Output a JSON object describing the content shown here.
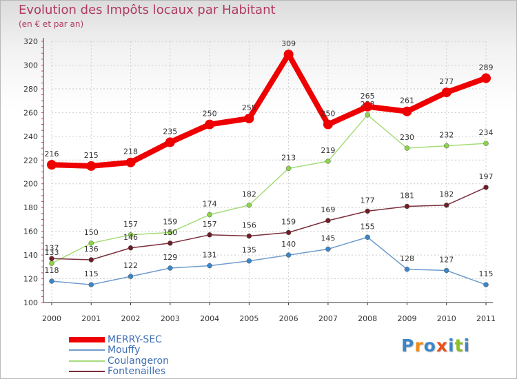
{
  "header": {
    "title": "Evolution des Impôts locaux par Habitant",
    "subtitle": "(en € et par an)"
  },
  "logo": {
    "letters": [
      "P",
      "r",
      "o",
      "x",
      "i",
      "t",
      "i"
    ]
  },
  "colors": {
    "title": "#b03a63",
    "legend_text": "#3f6fb5",
    "grid": "#cccccc",
    "logo": [
      "#3a86c8",
      "#f08c1c",
      "#3a86c8",
      "#e8501a",
      "#3a86c8",
      "#8cbf26",
      "#3a86c8"
    ]
  },
  "chart_data": {
    "type": "line",
    "title": "Evolution des Impôts locaux par Habitant",
    "subtitle": "(en € et par an)",
    "xlabel": "",
    "ylabel": "",
    "x": [
      "2000",
      "2001",
      "2002",
      "2003",
      "2004",
      "2005",
      "2006",
      "2007",
      "2008",
      "2009",
      "2010",
      "2011"
    ],
    "ylim": [
      100,
      320
    ],
    "yticks": [
      100,
      120,
      140,
      160,
      180,
      200,
      220,
      240,
      260,
      280,
      300,
      320
    ],
    "grid": true,
    "legend_position": "bottom-left",
    "series": [
      {
        "name": "MERRY-SEC",
        "color": "#ee0000",
        "marker_color": "#ee0000",
        "weight": "bold",
        "values": [
          216,
          215,
          218,
          235,
          250,
          255,
          309,
          250,
          265,
          261,
          277,
          289
        ],
        "labels": [
          "216",
          "215",
          "218",
          "235",
          "250",
          "255",
          "309",
          "250",
          "265",
          "261",
          "277",
          "289"
        ]
      },
      {
        "name": "Mouffy",
        "color": "#6f9ccd",
        "marker_color": "#3a86c8",
        "weight": "normal",
        "values": [
          118,
          115,
          122,
          129,
          131,
          135,
          140,
          145,
          155,
          128,
          127,
          115
        ],
        "labels": [
          "118",
          "115",
          "122",
          "129",
          "131",
          "135",
          "140",
          "145",
          "155",
          "128",
          "127",
          "115"
        ]
      },
      {
        "name": "Coulangeron",
        "color": "#a6dc7a",
        "marker_color": "#8cd44a",
        "weight": "normal",
        "values": [
          133,
          150,
          157,
          159,
          174,
          182,
          213,
          219,
          258,
          230,
          232,
          234
        ],
        "labels": [
          "133",
          "150",
          "157",
          "159",
          "174",
          "182",
          "213",
          "219",
          "258",
          "230",
          "232",
          "234"
        ]
      },
      {
        "name": "Fontenailles",
        "color": "#7a2e3a",
        "marker_color": "#6e1e28",
        "weight": "normal",
        "values": [
          137,
          136,
          146,
          150,
          157,
          156,
          159,
          169,
          177,
          181,
          182,
          197
        ],
        "labels": [
          "137",
          "136",
          "146",
          "150",
          "157",
          "156",
          "159",
          "169",
          "177",
          "181",
          "182",
          "197"
        ]
      }
    ]
  }
}
